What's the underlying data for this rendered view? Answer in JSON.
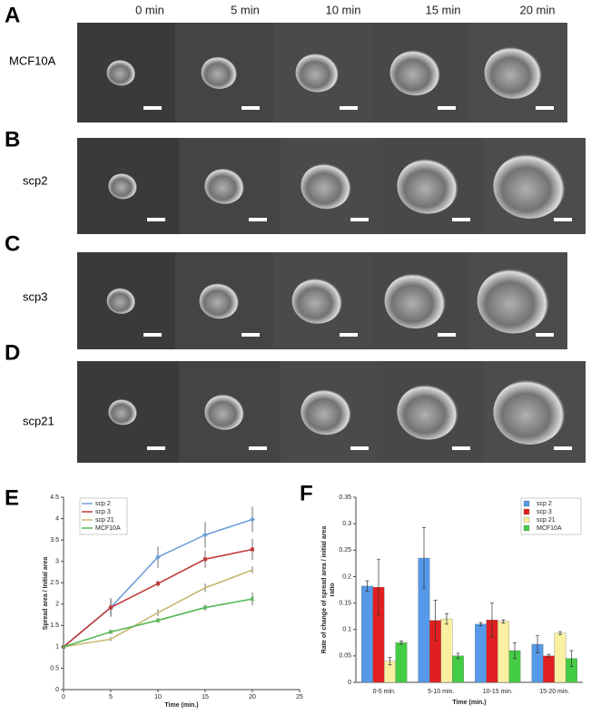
{
  "figure": {
    "time_labels": [
      "0 min",
      "5 min",
      "10 min",
      "15 min",
      "20 min"
    ],
    "rows": [
      {
        "panel": "A",
        "name": "MCF10A"
      },
      {
        "panel": "B",
        "name": "scp2"
      },
      {
        "panel": "C",
        "name": "scp3"
      },
      {
        "panel": "D",
        "name": "scp21"
      }
    ],
    "chart_panels": [
      "E",
      "F"
    ]
  },
  "chart_data": [
    {
      "type": "line",
      "x_label": "Time (min.)",
      "y_label": "Spread area / Initial area",
      "x": [
        0,
        5,
        10,
        15,
        20
      ],
      "xlim": [
        0,
        25
      ],
      "xticks": [
        0,
        5,
        10,
        15,
        20,
        25
      ],
      "ylim": [
        0,
        4.5
      ],
      "yticks": [
        0,
        0.5,
        1,
        1.5,
        2,
        2.5,
        3,
        3.5,
        4,
        4.5
      ],
      "legend": "top-left",
      "series": [
        {
          "name": "scp 2",
          "color": "#6f9fd8",
          "marker": "diamond",
          "values": [
            1,
            1.92,
            3.1,
            3.62,
            3.98
          ],
          "errors": [
            0,
            0.22,
            0.25,
            0.3,
            0.3
          ]
        },
        {
          "name": "scp 3",
          "color": "#c03a3a",
          "marker": "square",
          "values": [
            1,
            1.92,
            2.48,
            3.05,
            3.28
          ],
          "errors": [
            0,
            0.2,
            0.08,
            0.2,
            0.25
          ]
        },
        {
          "name": "scp 21",
          "color": "#c8b870",
          "marker": "none",
          "values": [
            1,
            1.18,
            1.8,
            2.38,
            2.8
          ],
          "errors": [
            0,
            0.05,
            0.08,
            0.1,
            0.08
          ]
        },
        {
          "name": "MCF10A",
          "color": "#55b855",
          "marker": "x",
          "values": [
            1,
            1.35,
            1.62,
            1.92,
            2.12
          ],
          "errors": [
            0,
            0.05,
            0.05,
            0.07,
            0.15
          ]
        }
      ]
    },
    {
      "type": "bar",
      "x_label": "Time (min.)",
      "y_label": [
        "Rate of change of spread area / initial area",
        "ratio"
      ],
      "categories": [
        "0-5 min.",
        "5-10 min.",
        "10-15 min.",
        "15-20 min."
      ],
      "ylim": [
        0,
        0.35
      ],
      "yticks": [
        0,
        0.05,
        0.1,
        0.15,
        0.2,
        0.25,
        0.3,
        0.35
      ],
      "legend": "top-right",
      "series": [
        {
          "name": "scp 2",
          "color": "#5599e8",
          "values": [
            0.182,
            0.235,
            0.11,
            0.072
          ],
          "errors": [
            0.01,
            0.058,
            0.003,
            0.016
          ]
        },
        {
          "name": "scp 3",
          "color": "#e02020",
          "values": [
            0.18,
            0.117,
            0.118,
            0.05
          ],
          "errors": [
            0.053,
            0.038,
            0.032,
            0.003
          ]
        },
        {
          "name": "scp 21",
          "color": "#f8f0a0",
          "values": [
            0.04,
            0.12,
            0.115,
            0.093
          ],
          "errors": [
            0.007,
            0.01,
            0.003,
            0.003
          ]
        },
        {
          "name": "MCF10A",
          "color": "#44cc44",
          "values": [
            0.075,
            0.05,
            0.06,
            0.045
          ],
          "errors": [
            0.003,
            0.005,
            0.015,
            0.015
          ]
        }
      ]
    }
  ]
}
